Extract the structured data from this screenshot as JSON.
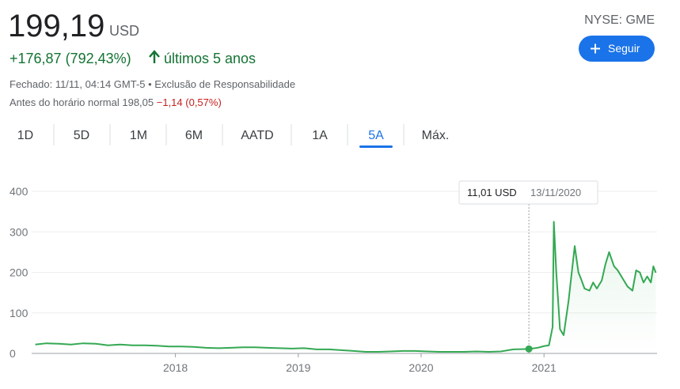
{
  "quote": {
    "price": "199,19",
    "currency": "USD",
    "change": "+176,87 (792,43%)",
    "period": "últimos 5 anos",
    "closed": "Fechado: 11/11, 04:14 GMT-5 • Exclusão de Responsabilidade",
    "premarket_label": "Antes do horário normal 198,05",
    "premarket_change": "−1,14 (0,57%)"
  },
  "ticker": "NYSE: GME",
  "follow_button": "Seguir",
  "tabs": [
    "1D",
    "5D",
    "1M",
    "6M",
    "AATD",
    "1A",
    "5A",
    "Máx."
  ],
  "selected_tab": 6,
  "tooltip": {
    "value": "11,01 USD",
    "date": "13/11/2020",
    "point": 40
  },
  "chart_data": {
    "type": "line",
    "color": "#34a853",
    "x": [
      2016.86,
      2016.95,
      2017.05,
      2017.15,
      2017.25,
      2017.35,
      2017.45,
      2017.55,
      2017.65,
      2017.75,
      2017.85,
      2017.95,
      2018.05,
      2018.15,
      2018.25,
      2018.35,
      2018.45,
      2018.55,
      2018.65,
      2018.75,
      2018.85,
      2018.95,
      2019.05,
      2019.15,
      2019.25,
      2019.35,
      2019.45,
      2019.55,
      2019.65,
      2019.75,
      2019.85,
      2019.95,
      2020.05,
      2020.15,
      2020.25,
      2020.35,
      2020.45,
      2020.55,
      2020.65,
      2020.75,
      2020.877,
      2020.95,
      2021.0,
      2021.04,
      2021.07,
      2021.08,
      2021.1,
      2021.13,
      2021.16,
      2021.2,
      2021.25,
      2021.28,
      2021.3,
      2021.33,
      2021.37,
      2021.4,
      2021.43,
      2021.47,
      2021.5,
      2021.53,
      2021.57,
      2021.6,
      2021.65,
      2021.68,
      2021.72,
      2021.75,
      2021.78,
      2021.81,
      2021.84,
      2021.87,
      2021.89,
      2021.91
    ],
    "values": [
      22,
      25,
      24,
      22,
      25,
      24,
      20,
      22,
      20,
      20,
      19,
      17,
      17,
      16,
      14,
      13,
      14,
      15,
      15,
      14,
      13,
      12,
      13,
      10,
      10,
      8,
      6,
      4,
      4,
      5,
      6,
      6,
      5,
      4,
      4,
      4,
      5,
      4,
      5,
      10,
      11.01,
      14,
      18,
      20,
      65,
      325,
      200,
      60,
      45,
      130,
      265,
      200,
      185,
      160,
      155,
      175,
      160,
      180,
      220,
      250,
      215,
      205,
      180,
      165,
      155,
      205,
      200,
      175,
      190,
      175,
      215,
      199.19
    ],
    "xlim": [
      2016.83,
      2021.92
    ],
    "xticks": [
      2018,
      2019,
      2020,
      2021
    ],
    "ylim": [
      0,
      400
    ],
    "yticks": [
      0,
      100,
      200,
      300,
      400
    ],
    "grid": true
  }
}
